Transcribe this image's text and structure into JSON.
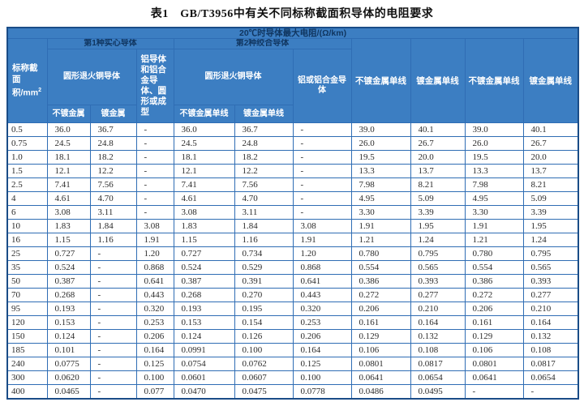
{
  "title": "表1　GB/T3956中有关不同标称截面积导体的电阻要求",
  "table": {
    "headers": {
      "max_resistance": "20℃时导体最大电阻/(Ω/km)",
      "nominal_area_base": "标称截面积/mm",
      "nominal_area_sup": "2",
      "class1_group": "第1种实心导体",
      "class2_group": "第2种绞合导体",
      "round_annealed_copper_class1": "圆形退火铜导体",
      "round_annealed_copper_class2": "圆形退火铜导体",
      "aluminium_class1": "铝导体和铝合金导体、圆形或成型",
      "aluminium_class2": "铝或铝合金导体",
      "uncoated": "不镀金属",
      "coated": "镀金属",
      "uncoated_wire_class2": "不镀金属单线",
      "coated_wire_class2": "镀金属单线",
      "tail_cols": [
        "不镀金属单线",
        "镀金属单线",
        "不镀金属单线",
        "镀金属单线"
      ]
    },
    "rows": [
      [
        "0.5",
        "36.0",
        "36.7",
        "-",
        "36.0",
        "36.7",
        "-",
        "39.0",
        "40.1",
        "39.0",
        "40.1"
      ],
      [
        "0.75",
        "24.5",
        "24.8",
        "-",
        "24.5",
        "24.8",
        "-",
        "26.0",
        "26.7",
        "26.0",
        "26.7"
      ],
      [
        "1.0",
        "18.1",
        "18.2",
        "-",
        "18.1",
        "18.2",
        "-",
        "19.5",
        "20.0",
        "19.5",
        "20.0"
      ],
      [
        "1.5",
        "12.1",
        "12.2",
        "-",
        "12.1",
        "12.2",
        "-",
        "13.3",
        "13.7",
        "13.3",
        "13.7"
      ],
      [
        "2.5",
        "7.41",
        "7.56",
        "-",
        "7.41",
        "7.56",
        "-",
        "7.98",
        "8.21",
        "7.98",
        "8.21"
      ],
      [
        "4",
        "4.61",
        "4.70",
        "-",
        "4.61",
        "4.70",
        "-",
        "4.95",
        "5.09",
        "4.95",
        "5.09"
      ],
      [
        "6",
        "3.08",
        "3.11",
        "-",
        "3.08",
        "3.11",
        "-",
        "3.30",
        "3.39",
        "3.30",
        "3.39"
      ],
      [
        "10",
        "1.83",
        "1.84",
        "3.08",
        "1.83",
        "1.84",
        "3.08",
        "1.91",
        "1.95",
        "1.91",
        "1.95"
      ],
      [
        "16",
        "1.15",
        "1.16",
        "1.91",
        "1.15",
        "1.16",
        "1.91",
        "1.21",
        "1.24",
        "1.21",
        "1.24"
      ],
      [
        "25",
        "0.727",
        "-",
        "1.20",
        "0.727",
        "0.734",
        "1.20",
        "0.780",
        "0.795",
        "0.780",
        "0.795"
      ],
      [
        "35",
        "0.524",
        "-",
        "0.868",
        "0.524",
        "0.529",
        "0.868",
        "0.554",
        "0.565",
        "0.554",
        "0.565"
      ],
      [
        "50",
        "0.387",
        "-",
        "0.641",
        "0.387",
        "0.391",
        "0.641",
        "0.386",
        "0.393",
        "0.386",
        "0.393"
      ],
      [
        "70",
        "0.268",
        "-",
        "0.443",
        "0.268",
        "0.270",
        "0.443",
        "0.272",
        "0.277",
        "0.272",
        "0.277"
      ],
      [
        "95",
        "0.193",
        "-",
        "0.320",
        "0.193",
        "0.195",
        "0.320",
        "0.206",
        "0.210",
        "0.206",
        "0.210"
      ],
      [
        "120",
        "0.153",
        "-",
        "0.253",
        "0.153",
        "0.154",
        "0.253",
        "0.161",
        "0.164",
        "0.161",
        "0.164"
      ],
      [
        "150",
        "0.124",
        "-",
        "0.206",
        "0.124",
        "0.126",
        "0.206",
        "0.129",
        "0.132",
        "0.129",
        "0.132"
      ],
      [
        "185",
        "0.101",
        "-",
        "0.164",
        "0.0991",
        "0.100",
        "0.164",
        "0.106",
        "0.108",
        "0.106",
        "0.108"
      ],
      [
        "240",
        "0.0775",
        "-",
        "0.125",
        "0.0754",
        "0.0762",
        "0.125",
        "0.0801",
        "0.0817",
        "0.0801",
        "0.0817"
      ],
      [
        "300",
        "0.0620",
        "-",
        "0.100",
        "0.0601",
        "0.0607",
        "0.100",
        "0.0641",
        "0.0654",
        "0.0641",
        "0.0654"
      ],
      [
        "400",
        "0.0465",
        "-",
        "0.077",
        "0.0470",
        "0.0475",
        "0.0778",
        "0.0486",
        "0.0495",
        "-",
        "-"
      ]
    ]
  }
}
